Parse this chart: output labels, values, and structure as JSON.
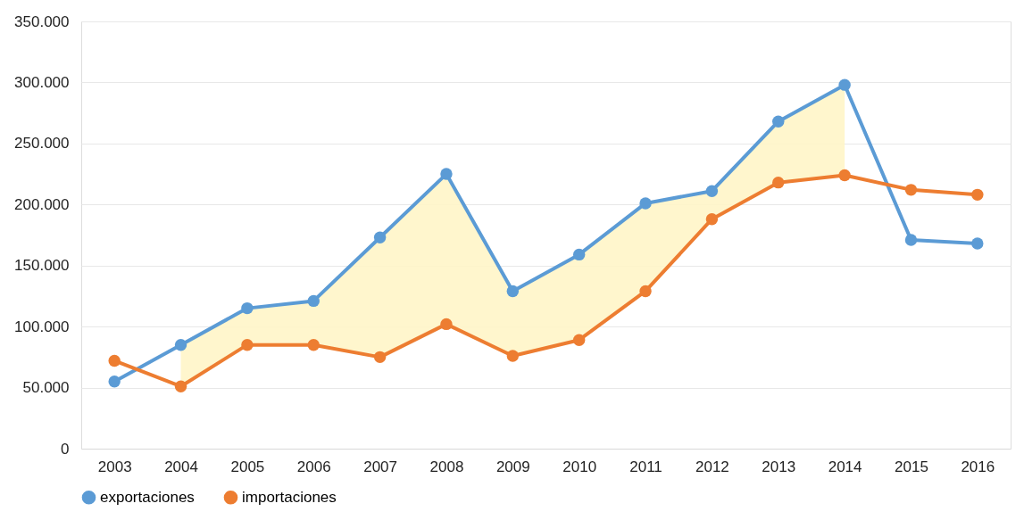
{
  "chart_data": {
    "type": "line",
    "categories": [
      "2003",
      "2004",
      "2005",
      "2006",
      "2007",
      "2008",
      "2009",
      "2010",
      "2011",
      "2012",
      "2013",
      "2014",
      "2015",
      "2016"
    ],
    "series": [
      {
        "name": "exportaciones",
        "color": "#5b9bd5",
        "values": [
          55000,
          85000,
          115000,
          121000,
          173000,
          225000,
          129000,
          159000,
          201000,
          211000,
          268000,
          298000,
          171000,
          168000
        ],
        "lower": [
          null,
          51000,
          85000,
          85000,
          75000,
          102000,
          76000,
          89000,
          129000,
          188000,
          218000,
          224000,
          null,
          null
        ],
        "upper": [
          null,
          85000,
          115000,
          121000,
          173000,
          225000,
          129000,
          159000,
          201000,
          211000,
          268000,
          298000,
          null,
          null
        ]
      },
      {
        "name": "importaciones",
        "color": "#ed7d31",
        "values": [
          72000,
          51000,
          85000,
          85000,
          75000,
          102000,
          76000,
          89000,
          129000,
          188000,
          218000,
          224000,
          212000,
          208000
        ]
      }
    ],
    "ylim": [
      0,
      350000
    ],
    "yticks": [
      {
        "value": 0,
        "label": "0"
      },
      {
        "value": 50000,
        "label": "50.000"
      },
      {
        "value": 100000,
        "label": "100.000"
      },
      {
        "value": 150000,
        "label": "150.000"
      },
      {
        "value": 200000,
        "label": "200.000"
      },
      {
        "value": 250000,
        "label": "250.000"
      },
      {
        "value": 300000,
        "label": "300.000"
      },
      {
        "value": 350000,
        "label": "350.000"
      }
    ],
    "grid": "y",
    "legend": "bottom",
    "marker": "circle",
    "line_style": "solid"
  }
}
